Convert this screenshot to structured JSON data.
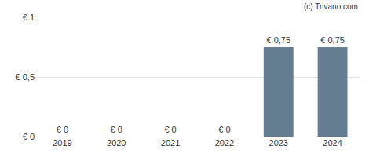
{
  "chart_data": {
    "type": "bar",
    "categories": [
      "2019",
      "2020",
      "2021",
      "2022",
      "2023",
      "2024"
    ],
    "values": [
      0,
      0,
      0,
      0,
      0.75,
      0.75
    ],
    "value_labels": [
      "€ 0",
      "€ 0",
      "€ 0",
      "€ 0",
      "€ 0,75",
      "€ 0,75"
    ],
    "data_labels": true,
    "color": "#647d91",
    "ylim": [
      0,
      1
    ],
    "yticks": [
      {
        "value": 0,
        "label": "€ 0"
      },
      {
        "value": 0.5,
        "label": "€ 0,5"
      },
      {
        "value": 1,
        "label": "€ 1"
      }
    ],
    "grid": true,
    "annotations": [
      "(c) Trivano.com"
    ]
  }
}
